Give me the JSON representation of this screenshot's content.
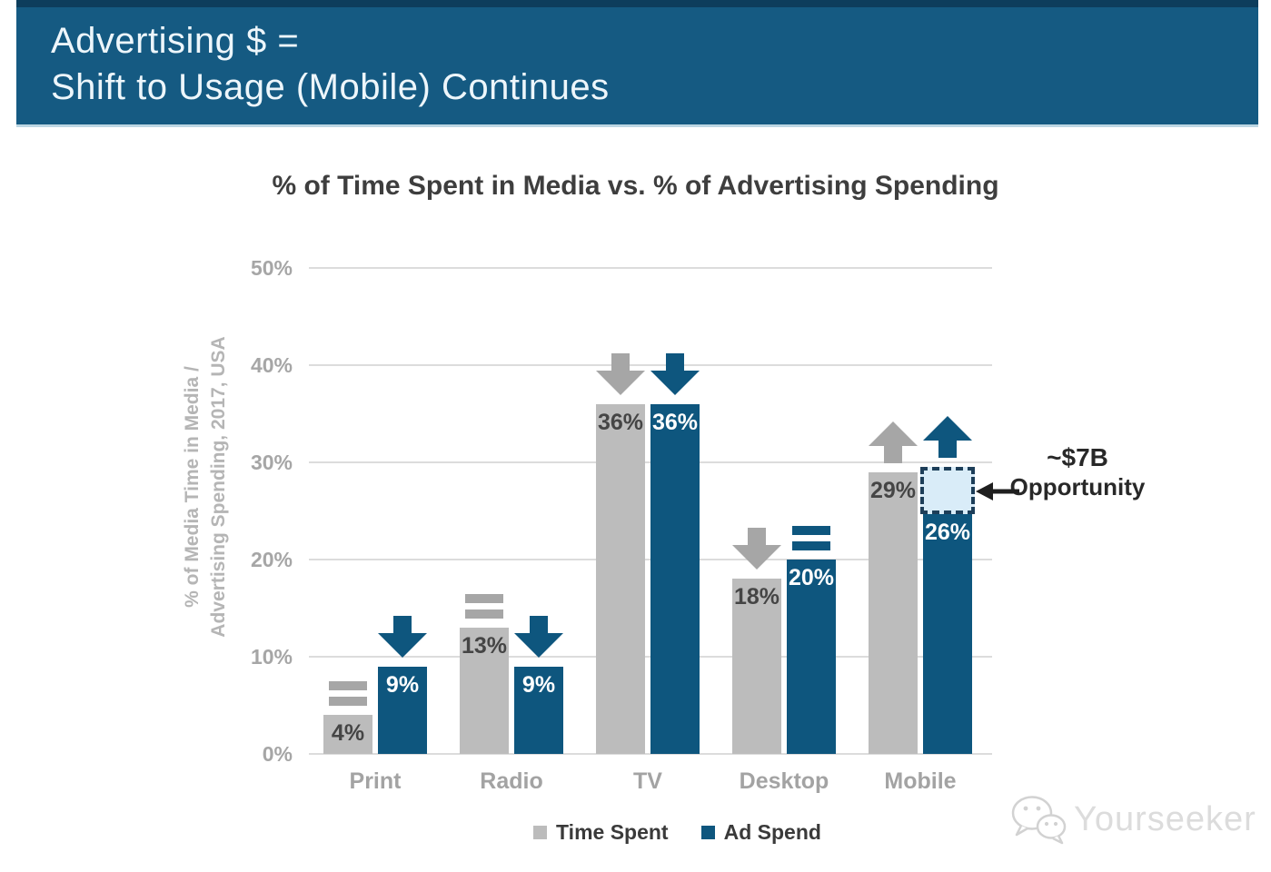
{
  "header": {
    "line1": "Advertising $ =",
    "line2": "Shift to Usage (Mobile) Continues"
  },
  "chart_data": {
    "type": "bar",
    "title": "% of Time Spent in Media vs. % of Advertising Spending",
    "ylabel": "% of Media Time in Media / Advertising Spending, 2017, USA",
    "ylabel_line1": "% of Media Time in Media /",
    "ylabel_line2": "Advertising Spending, 2017, USA",
    "categories": [
      "Print",
      "Radio",
      "TV",
      "Desktop",
      "Mobile"
    ],
    "series": [
      {
        "name": "Time Spent",
        "color": "#bcbcbc",
        "label_color": "#454545",
        "trend_color": "#a6a6a6",
        "values": [
          4,
          13,
          36,
          18,
          29
        ],
        "trends": [
          "equal",
          "equal",
          "down",
          "down",
          "up"
        ]
      },
      {
        "name": "Ad Spend",
        "color": "#0e567e",
        "label_color": "#ffffff",
        "trend_color": "#0e567e",
        "values": [
          9,
          9,
          36,
          20,
          26
        ],
        "trends": [
          "down",
          "down",
          "down",
          "equal",
          "up"
        ]
      }
    ],
    "ylim": [
      0,
      50
    ],
    "yticks": [
      "50%",
      "40%",
      "30%",
      "20%",
      "10%",
      "0%"
    ],
    "grid": true,
    "legend_position": "bottom",
    "annotation": {
      "line1": "~$7B",
      "line2": "Opportunity",
      "target_category": "Mobile",
      "target_series": "Ad Spend",
      "box_top_value": 29.5,
      "box_bottom_value": 26
    }
  },
  "watermark": {
    "label": "Yourseeker"
  },
  "colors": {
    "header_bg": "#155a82",
    "header_border": "#0d3d5c",
    "header_text": "#edf6fb",
    "title_text": "#3e3e3e",
    "gridline": "#dcdcdc",
    "axis_text": "#a6a6a6",
    "opportunity_fill": "#d9ecf8",
    "opportunity_border": "#1d3e59",
    "annotation_text": "#282828"
  }
}
